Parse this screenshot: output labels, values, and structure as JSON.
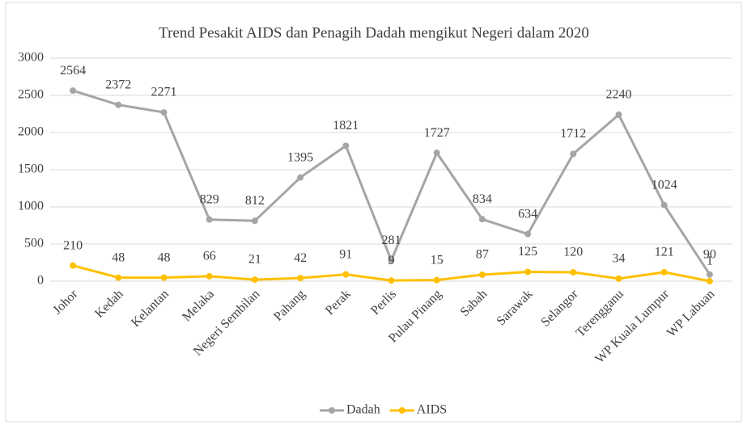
{
  "chart_data": {
    "type": "line",
    "title": "Trend Pesakit AIDS dan Penagih Dadah mengikut Negeri dalam 2020",
    "categories": [
      "Johor",
      "Kedah",
      "Kelantan",
      "Melaka",
      "Negeri Sembilan",
      "Pahang",
      "Perak",
      "Perlis",
      "Pulau Pinang",
      "Sabah",
      "Sarawak",
      "Selangor",
      "Terengganu",
      "WP Kuala Lumpur",
      "WP Labuan"
    ],
    "series": [
      {
        "name": "Dadah",
        "color": "#a5a5a5",
        "values": [
          2564,
          2372,
          2271,
          829,
          812,
          1395,
          1821,
          281,
          1727,
          834,
          634,
          1712,
          2240,
          1024,
          90
        ]
      },
      {
        "name": "AIDS",
        "color": "#ffc000",
        "values": [
          210,
          48,
          48,
          66,
          21,
          42,
          91,
          9,
          15,
          87,
          125,
          120,
          34,
          121,
          1
        ]
      }
    ],
    "ylim": [
      0,
      3000
    ],
    "yticks": [
      0,
      500,
      1000,
      1500,
      2000,
      2500,
      3000
    ],
    "grid": true,
    "legend": "bottom"
  }
}
